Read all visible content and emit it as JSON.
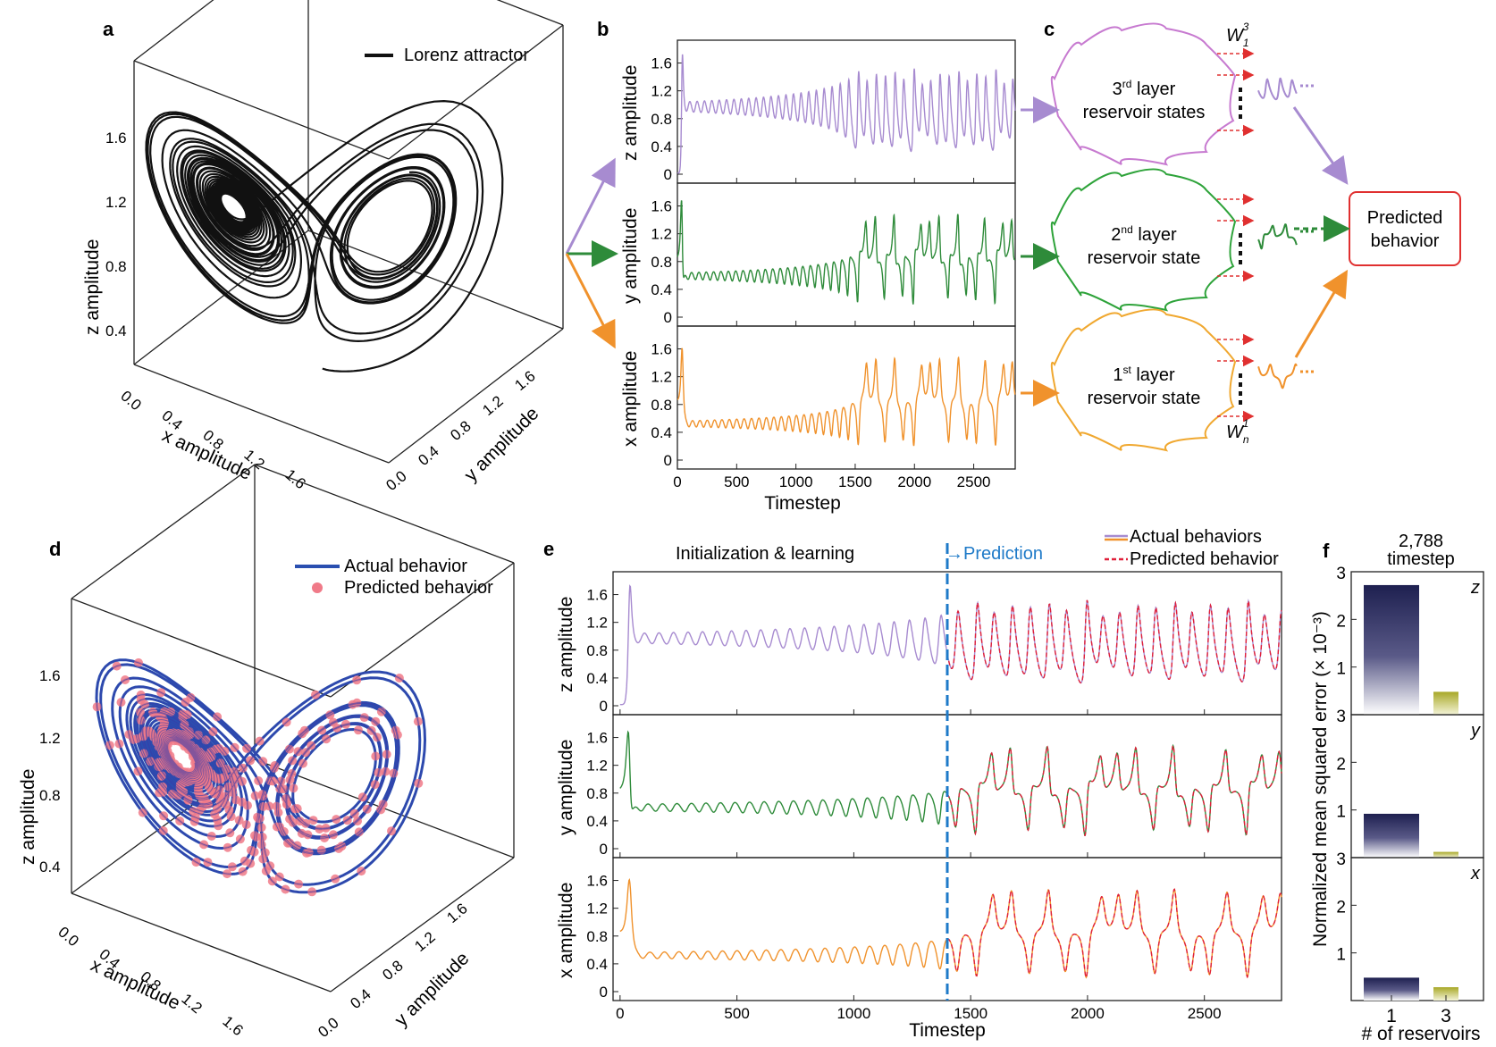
{
  "panels": {
    "a": {
      "label": "a",
      "legend": "Lorenz attractor",
      "z_ticks": [
        "0.4",
        "0.8",
        "1.2",
        "1.6"
      ],
      "x_ticks": [
        "0.0",
        "0.4",
        "0.8",
        "1.2",
        "1.6"
      ],
      "y_ticks": [
        "0.0",
        "0.4",
        "0.8",
        "1.2",
        "1.6"
      ],
      "zlabel": "z amplitude",
      "xlabel": "x amplitude",
      "ylabel": "y amplitude"
    },
    "b": {
      "label": "b",
      "xlabel": "Timestep",
      "x_ticks": [
        "0",
        "500",
        "1000",
        "1500",
        "2000",
        "2500"
      ],
      "y_ticks": [
        "0",
        "0.4",
        "0.8",
        "1.2",
        "1.6"
      ],
      "rows": [
        {
          "ylabel": "z amplitude",
          "color": "#a78bd0"
        },
        {
          "ylabel": "y amplitude",
          "color": "#2e8b3a"
        },
        {
          "ylabel": "x amplitude",
          "color": "#f0922c"
        }
      ]
    },
    "c": {
      "label": "c",
      "clouds": [
        {
          "line1_pre": "3",
          "line1_sup": "rd",
          "line1_post": " layer",
          "line2": "reservoir states",
          "color": "#c77ad0",
          "trace_color": "#a78bd0"
        },
        {
          "line1_pre": "2",
          "line1_sup": "nd",
          "line1_post": " layer",
          "line2": "reservoir state",
          "color": "#2ea33a",
          "trace_color": "#2e8b3a"
        },
        {
          "line1_pre": "1",
          "line1_sup": "st",
          "line1_post": " layer",
          "line2": "reservoir state",
          "color": "#f0a830",
          "trace_color": "#f0922c"
        }
      ],
      "w_top_main": "W",
      "w_top_sub": "1",
      "w_top_sup": "3",
      "w_bot_main": "W",
      "w_bot_sub": "n",
      "w_bot_sup": "1",
      "predicted_line1": "Predicted",
      "predicted_line2": "behavior",
      "predicted_color": "#e03030"
    },
    "d": {
      "label": "d",
      "legend_actual": "Actual behavior",
      "legend_predicted": "Predicted behavior",
      "z_ticks": [
        "0.4",
        "0.8",
        "1.2",
        "1.6"
      ],
      "x_ticks": [
        "0.0",
        "0.4",
        "0.8",
        "1.2",
        "1.6"
      ],
      "y_ticks": [
        "0.0",
        "0.4",
        "0.8",
        "1.2",
        "1.6"
      ],
      "zlabel": "z amplitude",
      "xlabel": "x amplitude",
      "ylabel": "y amplitude",
      "actual_color": "#2a4fb0",
      "predicted_color": "#f07a88"
    },
    "e": {
      "label": "e",
      "phase_learning": "Initialization & learning",
      "phase_prediction": "→Prediction",
      "legend_actual": "Actual behaviors",
      "legend_predicted": "Predicted behavior",
      "xlabel": "Timestep",
      "x_ticks": [
        "0",
        "500",
        "1000",
        "1500",
        "2000",
        "2500"
      ],
      "y_ticks": [
        "0",
        "0.4",
        "0.8",
        "1.2",
        "1.6"
      ],
      "rows": [
        {
          "ylabel": "z amplitude",
          "color": "#a78bd0"
        },
        {
          "ylabel": "y amplitude",
          "color": "#2e8b3a"
        },
        {
          "ylabel": "x amplitude",
          "color": "#f0922c"
        }
      ],
      "predicted_color": "#e0203a",
      "split_color": "#1e7ac8"
    },
    "f": {
      "label": "f",
      "title_line1": "2,788",
      "title_line2": "timestep",
      "ylabel": "Normalized mean squared error (× 10⁻³)",
      "xlabel": "# of reservoirs",
      "x_ticks": [
        "1",
        "3"
      ],
      "rows": [
        {
          "tag": "z",
          "y_ticks": [
            "1",
            "2",
            "3"
          ]
        },
        {
          "tag": "y",
          "y_ticks": [
            "1",
            "2",
            "3"
          ]
        },
        {
          "tag": "x",
          "y_ticks": [
            "1",
            "2",
            "3"
          ]
        }
      ],
      "bar1_color": "#1e2050",
      "bar3_color": "#b0b030"
    }
  },
  "chart_data": [
    {
      "panel": "a",
      "type": "line",
      "title": "",
      "series": [
        {
          "name": "Lorenz attractor",
          "color": "#111111"
        }
      ],
      "xlim": [
        0,
        1.8
      ],
      "ylim": [
        0,
        1.8
      ],
      "zlim": [
        0.2,
        1.8
      ]
    },
    {
      "panel": "b",
      "type": "line",
      "title": "",
      "xlabel": "Timestep",
      "xlim": [
        0,
        2850
      ],
      "ylim": [
        0,
        1.8
      ],
      "series": [
        {
          "name": "z amplitude",
          "color": "#a78bd0"
        },
        {
          "name": "y amplitude",
          "color": "#2e8b3a"
        },
        {
          "name": "x amplitude",
          "color": "#f0922c"
        }
      ]
    },
    {
      "panel": "d",
      "type": "line",
      "title": "",
      "series": [
        {
          "name": "Actual behavior",
          "color": "#2a4fb0"
        },
        {
          "name": "Predicted behavior",
          "color": "#f07a88"
        }
      ]
    },
    {
      "panel": "e",
      "type": "line",
      "title": "",
      "xlabel": "Timestep",
      "xlim": [
        -30,
        2830
      ],
      "ylim": [
        -0.1,
        1.9
      ],
      "prediction_start": 1400,
      "series": [
        {
          "name": "Actual behaviors",
          "color": "#a78bd0"
        },
        {
          "name": "Predicted behavior",
          "color": "#e0203a"
        }
      ]
    },
    {
      "panel": "f",
      "type": "bar",
      "title": "2,788 timestep",
      "xlabel": "# of reservoirs",
      "ylabel": "Normalized mean squared error (× 10⁻³)",
      "categories": [
        "1",
        "3"
      ],
      "ylim": [
        0,
        3
      ],
      "series": [
        {
          "name": "z",
          "values": [
            2.72,
            0.48
          ]
        },
        {
          "name": "y",
          "values": [
            0.92,
            0.12
          ]
        },
        {
          "name": "x",
          "values": [
            0.48,
            0.28
          ]
        }
      ]
    }
  ]
}
